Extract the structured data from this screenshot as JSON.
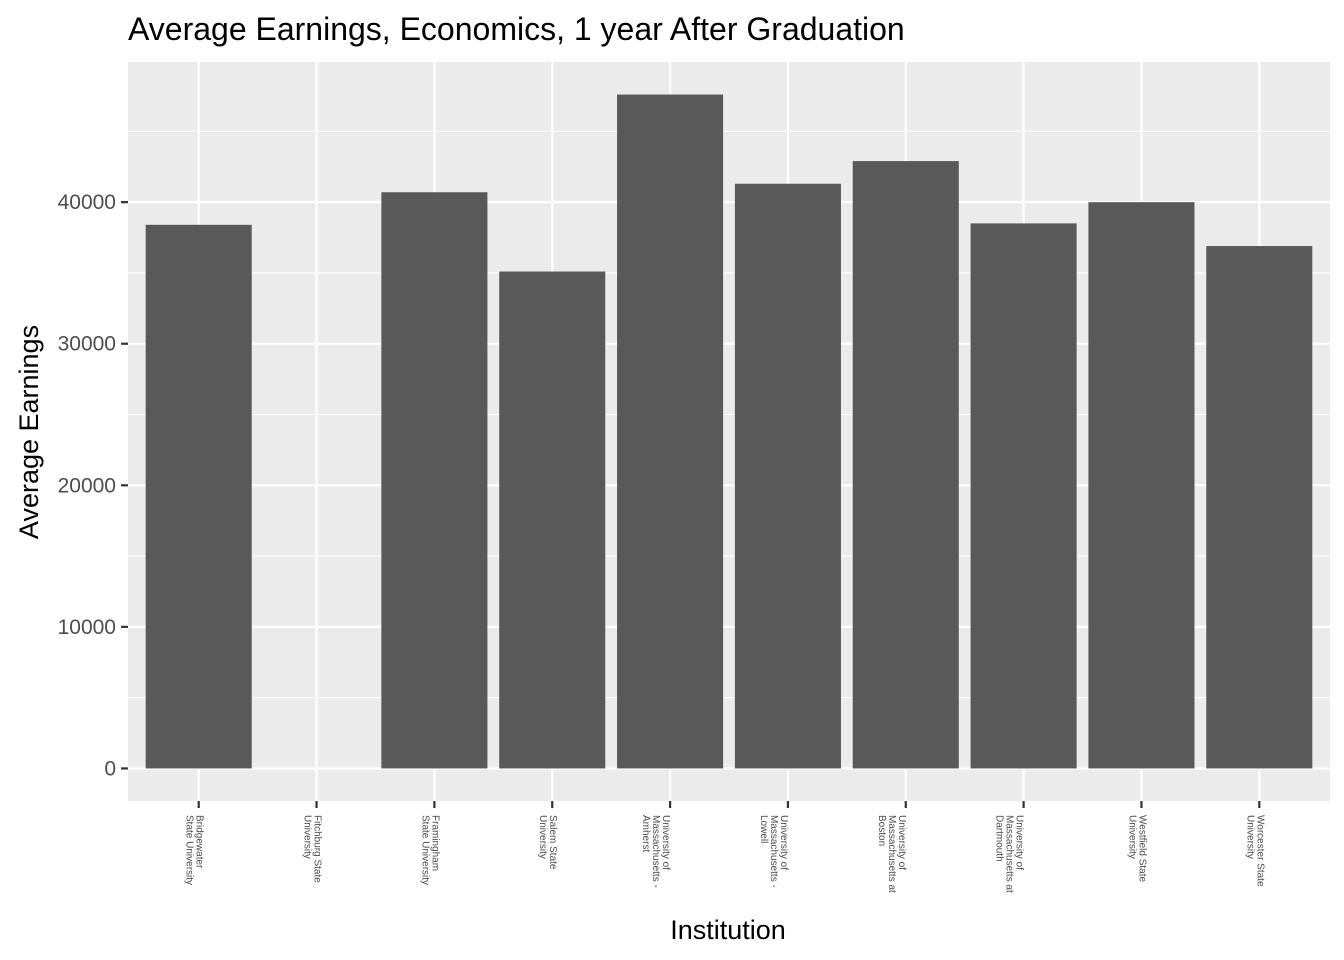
{
  "chart_data": {
    "type": "bar",
    "title": "Average Earnings, Economics, 1 year After Graduation",
    "xlabel": "Institution",
    "ylabel": "Average Earnings",
    "categories": [
      [
        "Bridgewater",
        "State University"
      ],
      [
        "Fitchburg State",
        "University"
      ],
      [
        "Framingham",
        "State University"
      ],
      [
        "Salem State",
        "University"
      ],
      [
        "University of",
        "Massachusetts -",
        "Amherst"
      ],
      [
        "University of",
        "Massachusetts -",
        "Lowell"
      ],
      [
        "University of",
        "Massachusetts at",
        "Boston"
      ],
      [
        "University of",
        "Massachusetts at",
        "Dartmouth"
      ],
      [
        "Westfield State",
        "University"
      ],
      [
        "Worcester State",
        "University"
      ]
    ],
    "values": [
      38400,
      null,
      40700,
      35100,
      47600,
      41300,
      42900,
      38500,
      40000,
      36900
    ],
    "ylim": [
      -2300,
      49900
    ],
    "yticks": [
      0,
      10000,
      20000,
      30000,
      40000
    ],
    "ytick_labels": [
      "0",
      "10000",
      "20000",
      "30000",
      "40000"
    ],
    "grid": true,
    "colors": {
      "panel": "#EBEBEB",
      "grid": "#FFFFFF",
      "bar": "#595959",
      "tick_text": "#4D4D4D",
      "axis_text": "#000000",
      "tick_mark": "#333333"
    }
  }
}
